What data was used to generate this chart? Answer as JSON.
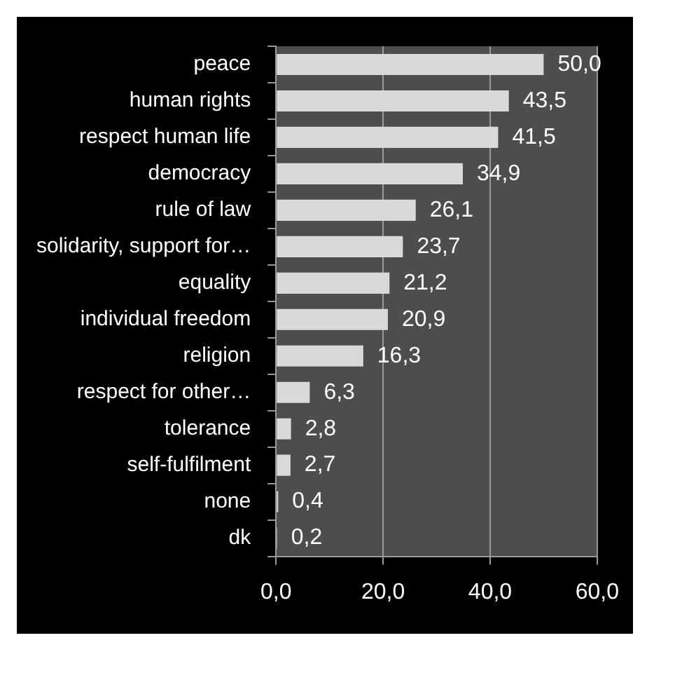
{
  "chart_data": {
    "type": "bar",
    "orientation": "horizontal",
    "categories": [
      "peace",
      "human rights",
      "respect human life",
      "democracy",
      "rule of law",
      "solidarity, support for…",
      "equality",
      "individual freedom",
      "religion",
      "respect for other…",
      "tolerance",
      "self-fulfilment",
      "none",
      "dk"
    ],
    "values": [
      50.0,
      43.5,
      41.5,
      34.9,
      26.1,
      23.7,
      21.2,
      20.9,
      16.3,
      6.3,
      2.8,
      2.7,
      0.4,
      0.2
    ],
    "value_labels": [
      "50,0",
      "43,5",
      "41,5",
      "34,9",
      "26,1",
      "23,7",
      "21,2",
      "20,9",
      "16,3",
      "6,3",
      "2,8",
      "2,7",
      "0,4",
      "0,2"
    ],
    "color": "#d9d9d9",
    "xlim": [
      0,
      60
    ],
    "xticks": [
      {
        "value": 0,
        "label": "0,0"
      },
      {
        "value": 20,
        "label": "20,0"
      },
      {
        "value": 40,
        "label": "40,0"
      },
      {
        "value": 60,
        "label": "60,0"
      }
    ],
    "grid": "x",
    "legend": false
  }
}
